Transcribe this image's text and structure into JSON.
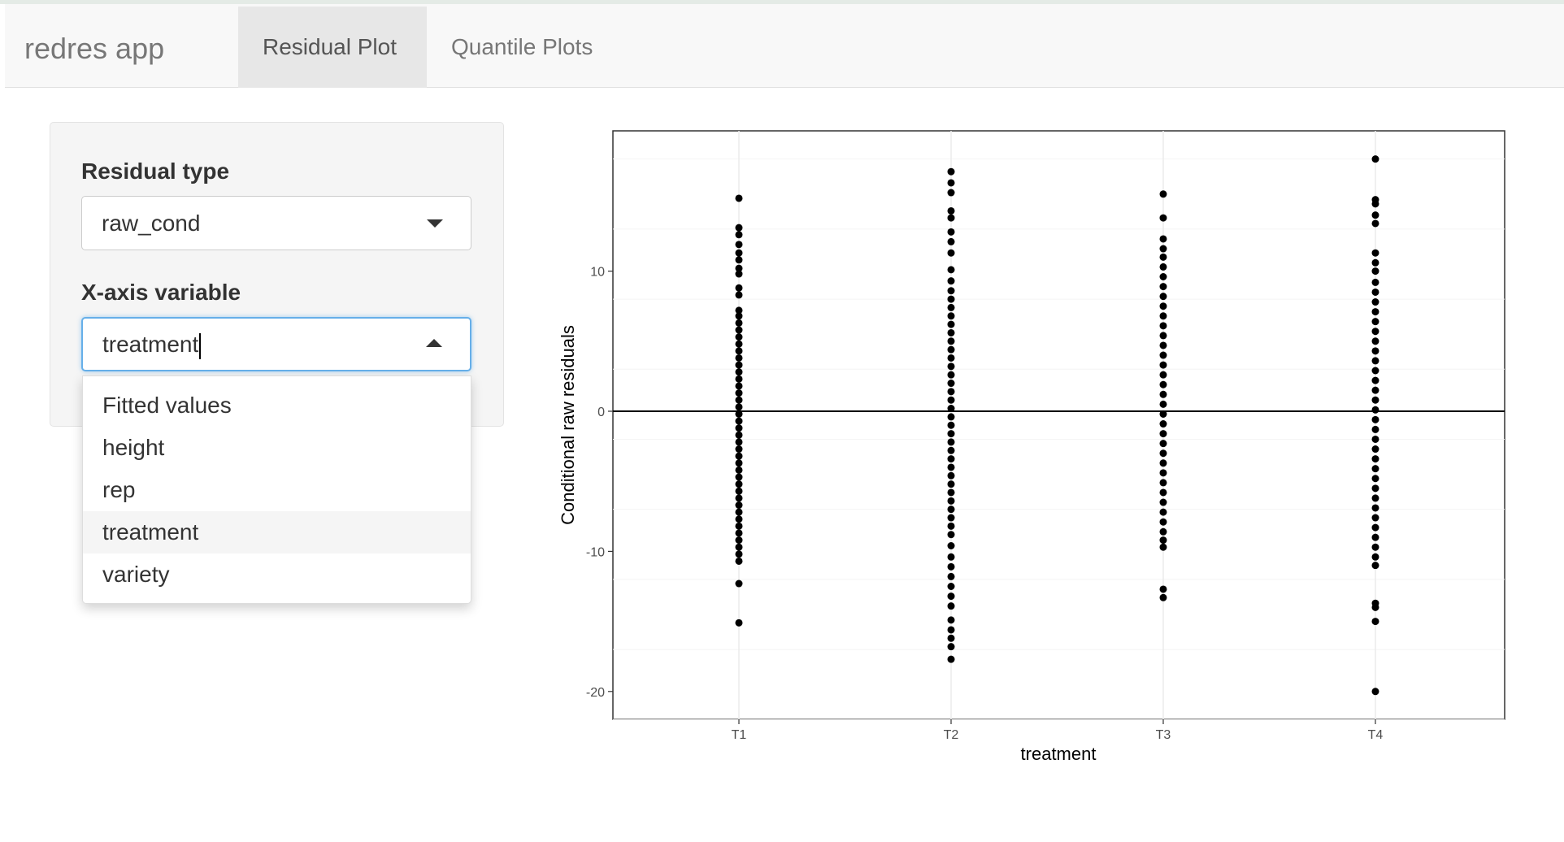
{
  "app": {
    "title": "redres app"
  },
  "nav": {
    "tabs": [
      {
        "label": "Residual Plot",
        "active": true
      },
      {
        "label": "Quantile Plots",
        "active": false
      }
    ]
  },
  "sidebar": {
    "residual_type": {
      "label": "Residual type",
      "value": "raw_cond"
    },
    "x_axis": {
      "label": "X-axis variable",
      "value": "treatment",
      "options": [
        "Fitted values",
        "height",
        "rep",
        "treatment",
        "variety"
      ],
      "highlighted": "treatment"
    }
  },
  "chart_data": {
    "type": "scatter",
    "xlabel": "treatment",
    "ylabel": "Conditional raw residuals",
    "categories": [
      "T1",
      "T2",
      "T3",
      "T4"
    ],
    "ylim": [
      -22,
      20
    ],
    "yticks": [
      -20,
      -10,
      0,
      10
    ],
    "hline": 0,
    "grid": true,
    "points": [
      {
        "x": "T1",
        "y": 15.2
      },
      {
        "x": "T1",
        "y": 13.1
      },
      {
        "x": "T1",
        "y": 12.6
      },
      {
        "x": "T1",
        "y": 11.9
      },
      {
        "x": "T1",
        "y": 11.3
      },
      {
        "x": "T1",
        "y": 10.8
      },
      {
        "x": "T1",
        "y": 10.2
      },
      {
        "x": "T1",
        "y": 9.8
      },
      {
        "x": "T1",
        "y": 8.8
      },
      {
        "x": "T1",
        "y": 8.3
      },
      {
        "x": "T1",
        "y": 7.2
      },
      {
        "x": "T1",
        "y": 6.8
      },
      {
        "x": "T1",
        "y": 6.3
      },
      {
        "x": "T1",
        "y": 5.8
      },
      {
        "x": "T1",
        "y": 5.3
      },
      {
        "x": "T1",
        "y": 4.8
      },
      {
        "x": "T1",
        "y": 4.3
      },
      {
        "x": "T1",
        "y": 3.8
      },
      {
        "x": "T1",
        "y": 3.3
      },
      {
        "x": "T1",
        "y": 2.8
      },
      {
        "x": "T1",
        "y": 2.3
      },
      {
        "x": "T1",
        "y": 1.8
      },
      {
        "x": "T1",
        "y": 1.3
      },
      {
        "x": "T1",
        "y": 0.8
      },
      {
        "x": "T1",
        "y": 0.3
      },
      {
        "x": "T1",
        "y": -0.2
      },
      {
        "x": "T1",
        "y": -0.7
      },
      {
        "x": "T1",
        "y": -1.2
      },
      {
        "x": "T1",
        "y": -1.7
      },
      {
        "x": "T1",
        "y": -2.2
      },
      {
        "x": "T1",
        "y": -2.7
      },
      {
        "x": "T1",
        "y": -3.2
      },
      {
        "x": "T1",
        "y": -3.7
      },
      {
        "x": "T1",
        "y": -4.2
      },
      {
        "x": "T1",
        "y": -4.7
      },
      {
        "x": "T1",
        "y": -5.2
      },
      {
        "x": "T1",
        "y": -5.7
      },
      {
        "x": "T1",
        "y": -6.2
      },
      {
        "x": "T1",
        "y": -6.7
      },
      {
        "x": "T1",
        "y": -7.2
      },
      {
        "x": "T1",
        "y": -7.7
      },
      {
        "x": "T1",
        "y": -8.2
      },
      {
        "x": "T1",
        "y": -8.7
      },
      {
        "x": "T1",
        "y": -9.2
      },
      {
        "x": "T1",
        "y": -9.7
      },
      {
        "x": "T1",
        "y": -10.2
      },
      {
        "x": "T1",
        "y": -10.7
      },
      {
        "x": "T1",
        "y": -12.3
      },
      {
        "x": "T1",
        "y": -15.1
      },
      {
        "x": "T2",
        "y": 17.1
      },
      {
        "x": "T2",
        "y": 16.3
      },
      {
        "x": "T2",
        "y": 15.6
      },
      {
        "x": "T2",
        "y": 14.3
      },
      {
        "x": "T2",
        "y": 13.8
      },
      {
        "x": "T2",
        "y": 12.8
      },
      {
        "x": "T2",
        "y": 12.1
      },
      {
        "x": "T2",
        "y": 11.3
      },
      {
        "x": "T2",
        "y": 10.1
      },
      {
        "x": "T2",
        "y": 9.3
      },
      {
        "x": "T2",
        "y": 8.6
      },
      {
        "x": "T2",
        "y": 8.0
      },
      {
        "x": "T2",
        "y": 7.4
      },
      {
        "x": "T2",
        "y": 6.8
      },
      {
        "x": "T2",
        "y": 6.2
      },
      {
        "x": "T2",
        "y": 5.6
      },
      {
        "x": "T2",
        "y": 5.0
      },
      {
        "x": "T2",
        "y": 4.4
      },
      {
        "x": "T2",
        "y": 3.8
      },
      {
        "x": "T2",
        "y": 3.2
      },
      {
        "x": "T2",
        "y": 2.6
      },
      {
        "x": "T2",
        "y": 2.0
      },
      {
        "x": "T2",
        "y": 1.4
      },
      {
        "x": "T2",
        "y": 0.8
      },
      {
        "x": "T2",
        "y": 0.2
      },
      {
        "x": "T2",
        "y": -0.4
      },
      {
        "x": "T2",
        "y": -1.0
      },
      {
        "x": "T2",
        "y": -1.6
      },
      {
        "x": "T2",
        "y": -2.2
      },
      {
        "x": "T2",
        "y": -2.8
      },
      {
        "x": "T2",
        "y": -3.4
      },
      {
        "x": "T2",
        "y": -4.0
      },
      {
        "x": "T2",
        "y": -4.6
      },
      {
        "x": "T2",
        "y": -5.2
      },
      {
        "x": "T2",
        "y": -5.8
      },
      {
        "x": "T2",
        "y": -6.4
      },
      {
        "x": "T2",
        "y": -7.0
      },
      {
        "x": "T2",
        "y": -7.6
      },
      {
        "x": "T2",
        "y": -8.2
      },
      {
        "x": "T2",
        "y": -8.8
      },
      {
        "x": "T2",
        "y": -9.6
      },
      {
        "x": "T2",
        "y": -10.4
      },
      {
        "x": "T2",
        "y": -11.1
      },
      {
        "x": "T2",
        "y": -11.8
      },
      {
        "x": "T2",
        "y": -12.5
      },
      {
        "x": "T2",
        "y": -13.2
      },
      {
        "x": "T2",
        "y": -13.9
      },
      {
        "x": "T2",
        "y": -14.9
      },
      {
        "x": "T2",
        "y": -15.6
      },
      {
        "x": "T2",
        "y": -16.2
      },
      {
        "x": "T2",
        "y": -16.8
      },
      {
        "x": "T2",
        "y": -17.7
      },
      {
        "x": "T3",
        "y": 15.5
      },
      {
        "x": "T3",
        "y": 13.8
      },
      {
        "x": "T3",
        "y": 12.3
      },
      {
        "x": "T3",
        "y": 11.6
      },
      {
        "x": "T3",
        "y": 11.0
      },
      {
        "x": "T3",
        "y": 10.3
      },
      {
        "x": "T3",
        "y": 9.6
      },
      {
        "x": "T3",
        "y": 8.9
      },
      {
        "x": "T3",
        "y": 8.2
      },
      {
        "x": "T3",
        "y": 7.5
      },
      {
        "x": "T3",
        "y": 6.8
      },
      {
        "x": "T3",
        "y": 6.1
      },
      {
        "x": "T3",
        "y": 5.4
      },
      {
        "x": "T3",
        "y": 4.7
      },
      {
        "x": "T3",
        "y": 4.0
      },
      {
        "x": "T3",
        "y": 3.3
      },
      {
        "x": "T3",
        "y": 2.6
      },
      {
        "x": "T3",
        "y": 1.9
      },
      {
        "x": "T3",
        "y": 1.2
      },
      {
        "x": "T3",
        "y": 0.5
      },
      {
        "x": "T3",
        "y": -0.2
      },
      {
        "x": "T3",
        "y": -0.9
      },
      {
        "x": "T3",
        "y": -1.6
      },
      {
        "x": "T3",
        "y": -2.3
      },
      {
        "x": "T3",
        "y": -3.0
      },
      {
        "x": "T3",
        "y": -3.7
      },
      {
        "x": "T3",
        "y": -4.4
      },
      {
        "x": "T3",
        "y": -5.1
      },
      {
        "x": "T3",
        "y": -5.8
      },
      {
        "x": "T3",
        "y": -6.5
      },
      {
        "x": "T3",
        "y": -7.2
      },
      {
        "x": "T3",
        "y": -7.9
      },
      {
        "x": "T3",
        "y": -8.6
      },
      {
        "x": "T3",
        "y": -9.2
      },
      {
        "x": "T3",
        "y": -9.7
      },
      {
        "x": "T3",
        "y": -12.7
      },
      {
        "x": "T3",
        "y": -13.3
      },
      {
        "x": "T4",
        "y": 18.0
      },
      {
        "x": "T4",
        "y": 15.1
      },
      {
        "x": "T4",
        "y": 14.8
      },
      {
        "x": "T4",
        "y": 14.0
      },
      {
        "x": "T4",
        "y": 13.4
      },
      {
        "x": "T4",
        "y": 11.3
      },
      {
        "x": "T4",
        "y": 10.6
      },
      {
        "x": "T4",
        "y": 10.0
      },
      {
        "x": "T4",
        "y": 9.2
      },
      {
        "x": "T4",
        "y": 8.5
      },
      {
        "x": "T4",
        "y": 7.8
      },
      {
        "x": "T4",
        "y": 7.1
      },
      {
        "x": "T4",
        "y": 6.4
      },
      {
        "x": "T4",
        "y": 5.7
      },
      {
        "x": "T4",
        "y": 5.0
      },
      {
        "x": "T4",
        "y": 4.3
      },
      {
        "x": "T4",
        "y": 3.6
      },
      {
        "x": "T4",
        "y": 2.9
      },
      {
        "x": "T4",
        "y": 2.2
      },
      {
        "x": "T4",
        "y": 1.5
      },
      {
        "x": "T4",
        "y": 0.8
      },
      {
        "x": "T4",
        "y": 0.1
      },
      {
        "x": "T4",
        "y": -0.6
      },
      {
        "x": "T4",
        "y": -1.3
      },
      {
        "x": "T4",
        "y": -2.0
      },
      {
        "x": "T4",
        "y": -2.7
      },
      {
        "x": "T4",
        "y": -3.4
      },
      {
        "x": "T4",
        "y": -4.1
      },
      {
        "x": "T4",
        "y": -4.8
      },
      {
        "x": "T4",
        "y": -5.5
      },
      {
        "x": "T4",
        "y": -6.2
      },
      {
        "x": "T4",
        "y": -6.9
      },
      {
        "x": "T4",
        "y": -7.6
      },
      {
        "x": "T4",
        "y": -8.3
      },
      {
        "x": "T4",
        "y": -9.0
      },
      {
        "x": "T4",
        "y": -9.7
      },
      {
        "x": "T4",
        "y": -10.4
      },
      {
        "x": "T4",
        "y": -11.0
      },
      {
        "x": "T4",
        "y": -13.7
      },
      {
        "x": "T4",
        "y": -14.0
      },
      {
        "x": "T4",
        "y": -15.0
      },
      {
        "x": "T4",
        "y": -20.0
      }
    ]
  }
}
